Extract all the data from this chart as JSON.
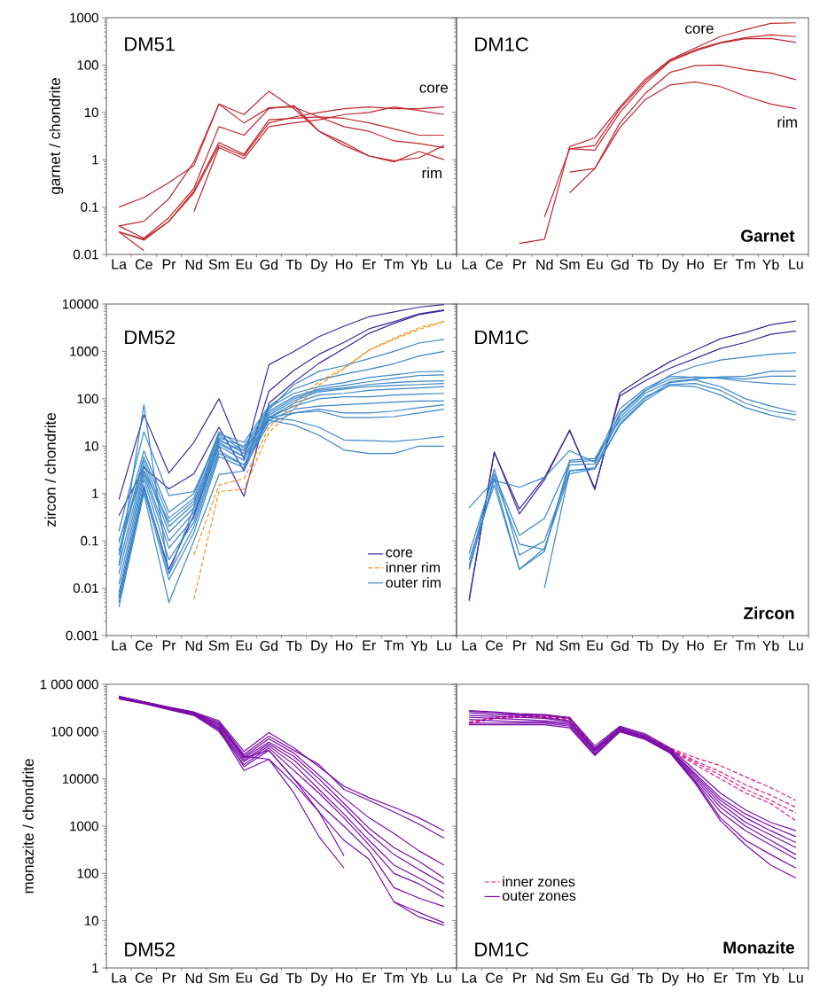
{
  "chart_data": [
    {
      "type": "line",
      "title": "DM51",
      "ylabel": "garnet / chondrite",
      "log": true,
      "ylim": [
        0.01,
        1000
      ],
      "yticks": [
        0.01,
        0.1,
        1,
        10,
        100,
        1000
      ],
      "categories": [
        "La",
        "Ce",
        "Pr",
        "Nd",
        "Sm",
        "Eu",
        "Gd",
        "Tb",
        "Dy",
        "Ho",
        "Er",
        "Tm",
        "Yb",
        "Lu"
      ],
      "annotations": [
        "core",
        "rim"
      ],
      "series": [
        {
          "color": "#c1272d",
          "values": [
            0.1,
            0.16,
            0.33,
            0.75,
            15,
            9,
            28,
            12,
            4,
            2.3,
            1.2,
            0.95,
            1.1,
            2
          ]
        },
        {
          "color": "#c1272d",
          "values": [
            0.04,
            0.05,
            0.15,
            0.9,
            15,
            6,
            12.5,
            13,
            8,
            5,
            4,
            2.5,
            2.2,
            1.8
          ]
        },
        {
          "color": "#c1272d",
          "values": [
            0.04,
            0.022,
            0.06,
            0.25,
            5,
            3.3,
            12,
            14,
            4,
            2,
            1.2,
            0.9,
            1.5,
            1.0
          ]
        },
        {
          "color": "#c1272d",
          "values": [
            0.03,
            0.02,
            0.05,
            0.22,
            2.3,
            1.3,
            7,
            7.5,
            8,
            7.5,
            6,
            4.5,
            3.3,
            3.3
          ]
        },
        {
          "color": "#c1272d",
          "values": [
            0.03,
            0.021,
            0.05,
            0.2,
            2,
            1.2,
            6,
            8,
            10,
            12,
            13,
            12,
            12,
            13
          ]
        },
        {
          "color": "#c1272d",
          "values": [
            null,
            null,
            null,
            0.08,
            1.8,
            1.05,
            5,
            6,
            7,
            9,
            10,
            13,
            11,
            9
          ]
        },
        {
          "color": "#c1272d",
          "values": [
            0.03,
            0.012,
            null,
            null,
            null,
            null,
            null,
            null,
            null,
            null,
            null,
            null,
            null,
            null
          ]
        }
      ]
    },
    {
      "type": "line",
      "title": "DM1C",
      "log": true,
      "ylim": [
        0.01,
        1000
      ],
      "yticks": [
        0.01,
        0.1,
        1,
        10,
        100,
        1000
      ],
      "tick_labels": "x",
      "categories": [
        "La",
        "Ce",
        "Pr",
        "Nd",
        "Sm",
        "Eu",
        "Gd",
        "Tb",
        "Dy",
        "Ho",
        "Er",
        "Tm",
        "Yb",
        "Lu"
      ],
      "annotations": [
        "Garnet",
        "core",
        "rim"
      ],
      "series": [
        {
          "color": "#c1272d",
          "values": [
            null,
            null,
            0.017,
            0.021,
            1.9,
            2.9,
            13,
            50,
            130,
            230,
            400,
            560,
            760,
            780
          ]
        },
        {
          "color": "#c1272d",
          "values": [
            null,
            null,
            null,
            0.062,
            1.7,
            2.0,
            12,
            45,
            125,
            210,
            300,
            380,
            435,
            400
          ]
        },
        {
          "color": "#c1272d",
          "values": [
            null,
            null,
            null,
            null,
            1.7,
            1.6,
            10,
            40,
            120,
            200,
            290,
            360,
            365,
            300
          ]
        },
        {
          "color": "#c1272d",
          "values": [
            null,
            null,
            null,
            null,
            0.55,
            0.65,
            6,
            25,
            70,
            98,
            100,
            80,
            68,
            49
          ]
        },
        {
          "color": "#c1272d",
          "values": [
            null,
            null,
            null,
            null,
            0.2,
            0.65,
            4.8,
            18.5,
            38,
            44,
            35,
            22,
            15,
            12
          ]
        }
      ]
    },
    {
      "type": "line",
      "title": "DM52",
      "ylabel": "zircon / chondrite",
      "log": true,
      "ylim": [
        0.001,
        10000
      ],
      "yticks": [
        0.001,
        0.01,
        0.1,
        1,
        10,
        100,
        1000,
        10000
      ],
      "legend": "bottom right",
      "categories": [
        "La",
        "Ce",
        "Pr",
        "Nd",
        "Sm",
        "Eu",
        "Gd",
        "Tb",
        "Dy",
        "Ho",
        "Er",
        "Tm",
        "Yb",
        "Lu"
      ],
      "series": [
        {
          "name": "core",
          "color": "#3b2a98",
          "values": [
            0.74,
            46,
            2.7,
            12,
            100,
            5.4,
            525,
            1000,
            2050,
            3400,
            5400,
            6800,
            8600,
            9700
          ]
        },
        {
          "color": "#3b2a98",
          "values": [
            0.34,
            3.5,
            1.25,
            2.6,
            25,
            3,
            145,
            400,
            870,
            1550,
            3000,
            4250,
            6200,
            7500
          ]
        },
        {
          "color": "#3b2a98",
          "values": [
            0.0063,
            1.35,
            0.025,
            0.35,
            10,
            0.87,
            81,
            225,
            560,
            1150,
            2400,
            3900,
            6000,
            7300
          ]
        },
        {
          "name": "inner rim",
          "color": "#f7941d",
          "line_style": "dashed",
          "values": [
            null,
            null,
            null,
            0.0059,
            1.1,
            1.23,
            19.5,
            61,
            195,
            430,
            1070,
            1900,
            3150,
            4350
          ]
        },
        {
          "color": "#f7941d",
          "line_style": "dashed",
          "values": [
            null,
            null,
            null,
            0.05,
            1.5,
            2.05,
            25,
            80,
            230,
            450,
            1050,
            1800,
            2900,
            4200
          ]
        },
        {
          "name": "outer rim",
          "color": "#3a87c9",
          "values": [
            0.16,
            20,
            0.9,
            1.1,
            15,
            10,
            60,
            200,
            380,
            500,
            700,
            1000,
            1500,
            1800
          ]
        },
        {
          "color": "#3a87c9",
          "values": [
            0.09,
            8,
            0.4,
            1.0,
            18,
            12,
            70,
            160,
            250,
            330,
            420,
            550,
            800,
            1000
          ]
        },
        {
          "color": "#3a87c9",
          "values": [
            0.06,
            6,
            0.3,
            0.8,
            20,
            9,
            65,
            130,
            180,
            220,
            280,
            320,
            370,
            380
          ]
        },
        {
          "color": "#3a87c9",
          "values": [
            0.05,
            5,
            0.2,
            0.6,
            17,
            8,
            55,
            110,
            160,
            190,
            230,
            270,
            310,
            320
          ]
        },
        {
          "color": "#3a87c9",
          "values": [
            0.03,
            4,
            0.15,
            0.5,
            14,
            7,
            50,
            100,
            150,
            170,
            200,
            220,
            235,
            240
          ]
        },
        {
          "color": "#3a87c9",
          "values": [
            0.02,
            3,
            0.1,
            0.4,
            12,
            6,
            45,
            90,
            140,
            160,
            180,
            190,
            200,
            210
          ]
        },
        {
          "color": "#3a87c9",
          "values": [
            0.012,
            2.5,
            0.07,
            0.3,
            10,
            5,
            40,
            80,
            120,
            130,
            150,
            160,
            170,
            180
          ]
        },
        {
          "color": "#3a87c9",
          "values": [
            0.008,
            2,
            0.04,
            0.25,
            8,
            4,
            40,
            70,
            100,
            110,
            110,
            120,
            125,
            130
          ]
        },
        {
          "color": "#3a87c9",
          "values": [
            0.006,
            1.5,
            0.02,
            0.2,
            7,
            4,
            35,
            60,
            70,
            75,
            80,
            85,
            90,
            90
          ]
        },
        {
          "color": "#3a87c9",
          "values": [
            0.005,
            1.2,
            0.015,
            0.15,
            6,
            3.5,
            30,
            50,
            60,
            50,
            50,
            55,
            65,
            75
          ]
        },
        {
          "color": "#3a87c9",
          "values": [
            0.004,
            1,
            0.005,
            0.1,
            2.5,
            3,
            40,
            50,
            55,
            40,
            40,
            42,
            50,
            60
          ]
        },
        {
          "color": "#3a87c9",
          "values": [
            0.03,
            75,
            0.02,
            0.5,
            11,
            6,
            35,
            28,
            17,
            8.3,
            7,
            7,
            10,
            10
          ]
        },
        {
          "color": "#3a87c9",
          "values": [
            0.1,
            3,
            0.25,
            0.7,
            13,
            8,
            40,
            35,
            25,
            13.5,
            13,
            12.5,
            14,
            16
          ]
        }
      ]
    },
    {
      "type": "line",
      "title": "DM1C",
      "log": true,
      "ylim": [
        0.001,
        10000
      ],
      "yticks": [
        0.001,
        0.01,
        0.1,
        1,
        10,
        100,
        1000,
        10000
      ],
      "tick_labels": "x",
      "categories": [
        "La",
        "Ce",
        "Pr",
        "Nd",
        "Sm",
        "Eu",
        "Gd",
        "Tb",
        "Dy",
        "Ho",
        "Er",
        "Tm",
        "Yb",
        "Lu"
      ],
      "annotations": [
        "Zircon"
      ],
      "series": [
        {
          "color": "#3b2a98",
          "values": [
            0.0054,
            7.6,
            0.37,
            1.95,
            22,
            1.2,
            135,
            300,
            610,
            1060,
            1850,
            2500,
            3650,
            4400
          ]
        },
        {
          "color": "#3b2a98",
          "values": [
            0.0058,
            7.3,
            0.47,
            2.2,
            21,
            1.3,
            115,
            240,
            445,
            710,
            1150,
            1550,
            2300,
            2700
          ]
        },
        {
          "color": "#3a87c9",
          "values": [
            0.5,
            1.9,
            1.35,
            2.2,
            8,
            4.6,
            46,
            145,
            315,
            490,
            660,
            760,
            870,
            940
          ]
        },
        {
          "color": "#3a87c9",
          "values": [
            0.054,
            2.6,
            0.13,
            0.3,
            4.6,
            5,
            61,
            165,
            300,
            280,
            280,
            260,
            300,
            300
          ]
        },
        {
          "color": "#3a87c9",
          "values": [
            0.025,
            2.2,
            0.085,
            0.065,
            4,
            4.2,
            50,
            150,
            260,
            290,
            270,
            230,
            210,
            200
          ]
        },
        {
          "color": "#3a87c9",
          "values": [
            0.03,
            3.3,
            0.05,
            0.1,
            3,
            3.5,
            40,
            130,
            230,
            260,
            290,
            300,
            380,
            385
          ]
        },
        {
          "color": "#3a87c9",
          "values": [
            0.04,
            1.5,
            0.025,
            0.07,
            2.6,
            3.3,
            30,
            100,
            220,
            250,
            180,
            100,
            70,
            52
          ]
        },
        {
          "color": "#3a87c9",
          "values": [
            null,
            null,
            null,
            0.0102,
            3,
            3.3,
            28,
            90,
            200,
            210,
            150,
            80,
            55,
            46
          ]
        },
        {
          "color": "#3a87c9",
          "values": [
            0.025,
            2,
            0.025,
            0.06,
            5,
            5.5,
            35,
            110,
            190,
            180,
            120,
            65,
            45,
            35
          ]
        }
      ]
    },
    {
      "type": "line",
      "title": "DM52",
      "ylabel": "monazite / chondrite",
      "log": true,
      "ylim": [
        1,
        1000000
      ],
      "yticks": [
        1,
        10,
        100,
        1000,
        10000,
        {
          "value": 100000,
          "label": "100 000"
        },
        {
          "value": 1000000,
          "label": "1 000 000"
        }
      ],
      "categories": [
        "La",
        "Ce",
        "Pr",
        "Nd",
        "Sm",
        "Eu",
        "Gd",
        "Tb",
        "Dy",
        "Ho",
        "Er",
        "Tm",
        "Yb",
        "Lu"
      ],
      "series": [
        {
          "color": "#7a0ca8",
          "values": [
            560000,
            430000,
            330000,
            260000,
            170000,
            38000,
            95000,
            45000,
            18000,
            7000,
            4000,
            2500,
            1500,
            800
          ]
        },
        {
          "color": "#7a0ca8",
          "values": [
            540000,
            420000,
            320000,
            250000,
            160000,
            33000,
            80000,
            40000,
            20000,
            6000,
            3500,
            2000,
            1100,
            560
          ]
        },
        {
          "color": "#7a0ca8",
          "values": [
            530000,
            420000,
            320000,
            240000,
            150000,
            30000,
            70000,
            35000,
            12000,
            4000,
            1500,
            700,
            300,
            150
          ]
        },
        {
          "color": "#7a0ca8",
          "values": [
            520000,
            410000,
            310000,
            240000,
            140000,
            28000,
            60000,
            30000,
            10000,
            3000,
            900,
            350,
            180,
            80
          ]
        },
        {
          "color": "#7a0ca8",
          "values": [
            510000,
            400000,
            300000,
            230000,
            120000,
            25000,
            55000,
            25000,
            8000,
            2500,
            700,
            250,
            120,
            60
          ]
        },
        {
          "color": "#7a0ca8",
          "values": [
            500000,
            400000,
            300000,
            230000,
            110000,
            23000,
            50000,
            20000,
            6000,
            1800,
            500,
            150,
            80,
            40
          ]
        },
        {
          "color": "#7a0ca8",
          "values": [
            490000,
            390000,
            290000,
            220000,
            100000,
            20000,
            45000,
            15000,
            5000,
            1500,
            400,
            100,
            60,
            30
          ]
        },
        {
          "color": "#7a0ca8",
          "values": [
            500000,
            400000,
            300000,
            230000,
            120000,
            18000,
            40000,
            10000,
            3000,
            1000,
            300,
            50,
            30,
            20
          ]
        },
        {
          "color": "#7a0ca8",
          "values": [
            510000,
            400000,
            300000,
            230000,
            110000,
            15000,
            26000,
            8000,
            2000,
            500,
            200,
            25,
            12,
            8
          ]
        },
        {
          "color": "#7a0ca8",
          "values": [
            530000,
            420000,
            320000,
            250000,
            140000,
            30000,
            26000,
            5000,
            600,
            130,
            null,
            null,
            null,
            null
          ]
        },
        {
          "color": "#7a0ca8",
          "values": [
            520000,
            410000,
            310000,
            240000,
            130000,
            28000,
            40000,
            10000,
            2000,
            235,
            null,
            null,
            null,
            null
          ]
        },
        {
          "color": "#7a0ca8",
          "values": [
            null,
            null,
            null,
            null,
            null,
            null,
            null,
            null,
            null,
            null,
            null,
            25,
            15,
            9
          ]
        }
      ]
    },
    {
      "type": "line",
      "title": "DM1C",
      "log": true,
      "ylim": [
        1,
        1000000
      ],
      "yticks": [
        1,
        10,
        100,
        1000,
        10000,
        100000,
        1000000
      ],
      "tick_labels": "x",
      "legend": "bottom left",
      "categories": [
        "La",
        "Ce",
        "Pr",
        "Nd",
        "Sm",
        "Eu",
        "Gd",
        "Tb",
        "Dy",
        "Ho",
        "Er",
        "Tm",
        "Yb",
        "Lu"
      ],
      "annotations": [
        "Monazite"
      ],
      "series": [
        {
          "name": "inner zones",
          "color": "#e5188b",
          "line_style": "dashed",
          "values": [
            160000,
            200000,
            220000,
            220000,
            200000,
            45000,
            110000,
            80000,
            45000,
            28000,
            19000,
            11000,
            6500,
            3500
          ]
        },
        {
          "color": "#e5188b",
          "line_style": "dashed",
          "values": [
            150000,
            190000,
            210000,
            210000,
            190000,
            43000,
            105000,
            78000,
            44000,
            24000,
            14000,
            7500,
            4500,
            2500
          ]
        },
        {
          "color": "#e5188b",
          "line_style": "dashed",
          "values": [
            150000,
            190000,
            210000,
            210000,
            190000,
            42000,
            100000,
            75000,
            43000,
            22000,
            12000,
            6000,
            3500,
            1900
          ]
        },
        {
          "color": "#e5188b",
          "line_style": "dashed",
          "values": [
            150000,
            190000,
            200000,
            200000,
            180000,
            40000,
            100000,
            75000,
            42000,
            20000,
            10000,
            5000,
            3000,
            1300
          ]
        },
        {
          "name": "outer zones",
          "color": "#7a0ca8",
          "values": [
            280000,
            260000,
            240000,
            230000,
            200000,
            50000,
            130000,
            90000,
            45000,
            15000,
            5000,
            2200,
            1200,
            800
          ]
        },
        {
          "color": "#7a0ca8",
          "values": [
            270000,
            250000,
            230000,
            220000,
            190000,
            45000,
            125000,
            85000,
            42000,
            13000,
            4000,
            1800,
            1000,
            600
          ]
        },
        {
          "color": "#7a0ca8",
          "values": [
            250000,
            230000,
            220000,
            200000,
            170000,
            42000,
            120000,
            80000,
            40000,
            12000,
            3500,
            1500,
            800,
            450
          ]
        },
        {
          "color": "#7a0ca8",
          "values": [
            220000,
            210000,
            200000,
            190000,
            160000,
            40000,
            115000,
            78000,
            40000,
            11000,
            3000,
            1200,
            650,
            350
          ]
        },
        {
          "color": "#7a0ca8",
          "values": [
            200000,
            190000,
            180000,
            170000,
            150000,
            38000,
            110000,
            75000,
            38000,
            10000,
            2500,
            1000,
            500,
            250
          ]
        },
        {
          "color": "#7a0ca8",
          "values": [
            180000,
            170000,
            160000,
            160000,
            140000,
            35000,
            105000,
            72000,
            37000,
            9000,
            2000,
            800,
            400,
            200
          ]
        },
        {
          "color": "#7a0ca8",
          "values": [
            150000,
            150000,
            150000,
            150000,
            130000,
            33000,
            100000,
            70000,
            36000,
            8500,
            1500,
            500,
            250,
            130
          ]
        },
        {
          "color": "#7a0ca8",
          "values": [
            140000,
            140000,
            140000,
            140000,
            120000,
            31000,
            100000,
            68000,
            35000,
            8000,
            1300,
            400,
            150,
            80
          ]
        }
      ]
    }
  ]
}
